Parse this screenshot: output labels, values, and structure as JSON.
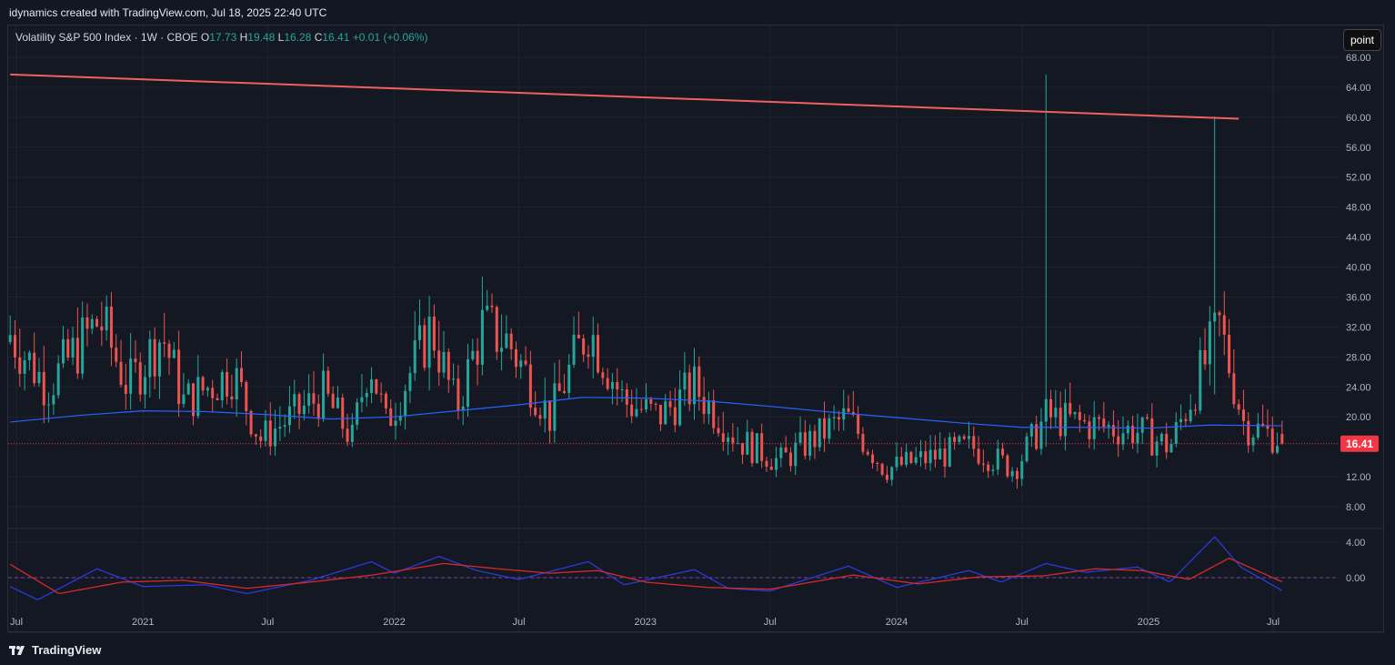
{
  "header": {
    "text": "idynamics created with TradingView.com, Jul 18, 2025 22:40 UTC"
  },
  "legend": {
    "title": "Volatility S&P 500 Index · 1W · CBOE",
    "o_label": "O",
    "o_value": "17.73",
    "h_label": "H",
    "h_value": "19.48",
    "l_label": "L",
    "l_value": "16.28",
    "c_label": "C",
    "c_value": "16.41",
    "change": "+0.01 (+0.06%)"
  },
  "toolbar": {
    "point_label": "point"
  },
  "footer": {
    "brand": "TradingView"
  },
  "colors": {
    "background": "#131722",
    "up": "#26a69a",
    "down": "#ef5350",
    "trendline": "#f06060",
    "ma": "#2962ff",
    "osc_blue": "#2a3ad8",
    "osc_red": "#d42a2a",
    "price_badge": "#f23645"
  },
  "chart_data": {
    "type": "candlestick",
    "title": "Volatility S&P 500 Index",
    "interval": "1W",
    "exchange": "CBOE",
    "x_ticks": [
      "Jul",
      "2021",
      "Jul",
      "2022",
      "Jul",
      "2023",
      "Jul",
      "2024",
      "Jul",
      "2025",
      "Jul"
    ],
    "x_tick_dates": [
      "2020-07-01",
      "2021-01-01",
      "2021-07-01",
      "2022-01-01",
      "2022-07-01",
      "2023-01-01",
      "2023-07-01",
      "2024-01-01",
      "2024-07-01",
      "2025-01-01",
      "2025-07-01"
    ],
    "y_ticks": [
      "68.00",
      "64.00",
      "60.00",
      "56.00",
      "52.00",
      "48.00",
      "44.00",
      "40.00",
      "36.00",
      "32.00",
      "28.00",
      "24.00",
      "20.00",
      "12.00",
      "8.00"
    ],
    "ylim": [
      5,
      69
    ],
    "last_price": "16.41",
    "last_price_value": 16.41,
    "trendline": [
      {
        "date": "2020-06-22",
        "value": 65.7
      },
      {
        "date": "2025-05-12",
        "value": 59.8
      }
    ],
    "moving_average": {
      "dates": [
        "2020-06-22",
        "2020-10-01",
        "2021-01-01",
        "2021-04-01",
        "2021-07-01",
        "2021-10-01",
        "2022-01-01",
        "2022-04-01",
        "2022-07-01",
        "2022-10-01",
        "2023-01-01",
        "2023-04-01",
        "2023-07-01",
        "2023-10-01",
        "2024-01-01",
        "2024-04-01",
        "2024-07-01",
        "2024-10-01",
        "2025-01-01",
        "2025-04-01",
        "2025-07-15"
      ],
      "values": [
        19.3,
        20.2,
        20.8,
        20.7,
        20.3,
        19.7,
        20.0,
        20.8,
        21.6,
        22.6,
        22.5,
        22.1,
        21.4,
        20.6,
        19.9,
        19.2,
        18.6,
        18.6,
        18.5,
        18.9,
        18.8
      ]
    },
    "spikes": [
      {
        "date": "2024-08-05",
        "high": 65.7,
        "low": 16.0
      },
      {
        "date": "2025-04-07",
        "high": 60.1,
        "low": 23.0
      }
    ],
    "oscillator": {
      "y_ticks": [
        "4.00",
        "0.00"
      ],
      "ylim": [
        -3.5,
        5.2
      ],
      "zero_line": 0,
      "blue": {
        "dates": [
          "2020-06-22",
          "2020-08-01",
          "2020-10-26",
          "2021-01-01",
          "2021-04-01",
          "2021-06-01",
          "2021-09-01",
          "2021-11-29",
          "2022-01-01",
          "2022-03-07",
          "2022-05-01",
          "2022-07-01",
          "2022-10-10",
          "2022-12-01",
          "2023-03-13",
          "2023-05-01",
          "2023-07-01",
          "2023-10-23",
          "2024-01-01",
          "2024-04-15",
          "2024-06-01",
          "2024-08-05",
          "2024-10-01",
          "2024-12-16",
          "2025-02-01",
          "2025-04-07",
          "2025-05-15",
          "2025-07-15"
        ],
        "values": [
          -1.0,
          -2.5,
          1.0,
          -1.0,
          -0.8,
          -1.8,
          -0.3,
          1.8,
          0.5,
          2.4,
          0.8,
          -0.2,
          1.8,
          -0.8,
          0.9,
          -1.2,
          -1.5,
          1.3,
          -1.1,
          0.8,
          -0.5,
          1.6,
          0.6,
          1.2,
          -0.5,
          4.6,
          1.2,
          -1.5
        ]
      },
      "red": {
        "dates": [
          "2020-06-22",
          "2020-09-01",
          "2020-12-01",
          "2021-03-01",
          "2021-06-01",
          "2021-09-01",
          "2021-12-01",
          "2022-03-14",
          "2022-06-01",
          "2022-08-15",
          "2022-10-24",
          "2023-01-01",
          "2023-04-01",
          "2023-07-01",
          "2023-10-30",
          "2024-02-01",
          "2024-05-01",
          "2024-08-01",
          "2024-10-15",
          "2024-12-23",
          "2025-03-01",
          "2025-04-28",
          "2025-07-15"
        ],
        "values": [
          1.5,
          -1.8,
          -0.5,
          -0.3,
          -1.2,
          -0.5,
          0.3,
          1.6,
          1.0,
          0.5,
          0.8,
          -0.5,
          -1.1,
          -1.3,
          0.3,
          -0.7,
          0.1,
          0.2,
          1.0,
          0.8,
          -0.2,
          2.2,
          -0.5
        ]
      }
    }
  }
}
